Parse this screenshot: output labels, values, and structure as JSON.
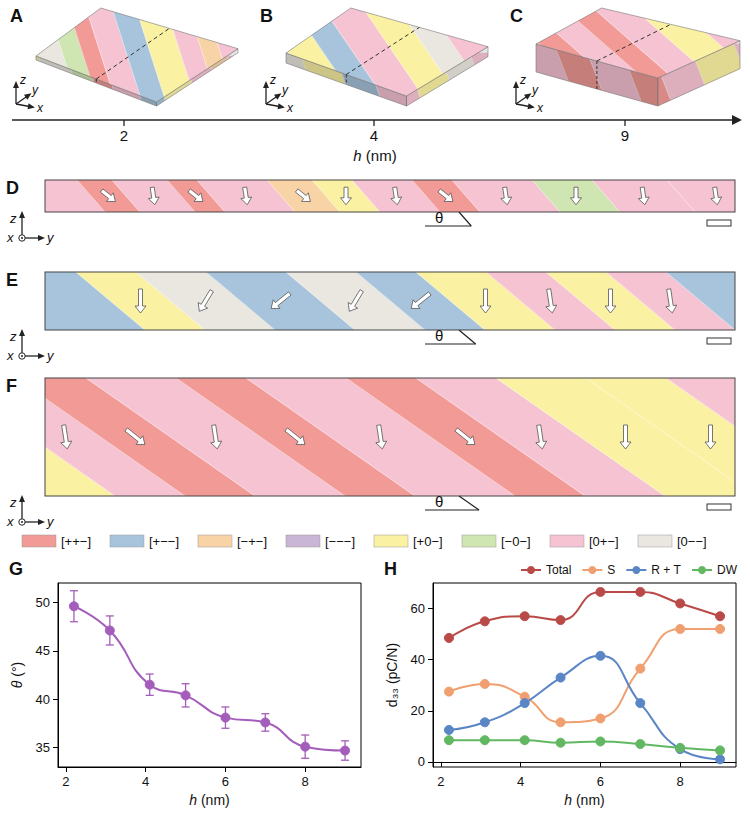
{
  "slab_panels": [
    {
      "letter": "A"
    },
    {
      "letter": "B"
    },
    {
      "letter": "C"
    }
  ],
  "axis_names": {
    "x": "x",
    "y": "y",
    "z": "z"
  },
  "thickness_axis": {
    "label": "h (nm)",
    "ticks": [
      2,
      4,
      9
    ]
  },
  "section_panels": [
    {
      "letter": "D",
      "angle_label": "θ"
    },
    {
      "letter": "E",
      "angle_label": "θ"
    },
    {
      "letter": "F",
      "angle_label": "θ"
    }
  ],
  "domain_legend": [
    {
      "label": "[++−]",
      "color": "#f29a96"
    },
    {
      "label": "[+−−]",
      "color": "#a8c4dc"
    },
    {
      "label": "[−+−]",
      "color": "#f8d3a5"
    },
    {
      "label": "[−−−]",
      "color": "#c9b5d5"
    },
    {
      "label": "[+0−]",
      "color": "#fbf1a3"
    },
    {
      "label": "[−0−]",
      "color": "#cfe6b2"
    },
    {
      "label": "[0+−]",
      "color": "#f6c3d3"
    },
    {
      "label": "[0−−]",
      "color": "#e9e7df"
    }
  ],
  "chart_data": [
    {
      "title": "G",
      "type": "line",
      "x": [
        2.2,
        3.1,
        4.1,
        5.0,
        6.0,
        7.0,
        8.0,
        9.0
      ],
      "xlabel": "h (nm)",
      "ylabel": "θ (°)",
      "xlim": [
        1.8,
        9.4
      ],
      "xticks": [
        2,
        4,
        6,
        8
      ],
      "ylim": [
        33,
        52
      ],
      "yticks": [
        35,
        40,
        45,
        50
      ],
      "grid": false,
      "marker": "circle",
      "series": [
        {
          "color": "#a45dbb",
          "values": [
            49.6,
            47.1,
            41.5,
            40.4,
            38.1,
            37.6,
            35.1,
            34.7
          ],
          "errors": [
            1.6,
            1.5,
            1.1,
            1.2,
            1.1,
            0.9,
            1.2,
            1.0
          ]
        }
      ]
    },
    {
      "title": "H",
      "type": "line",
      "x": [
        2.2,
        3.1,
        4.1,
        5.0,
        6.0,
        7.0,
        8.0,
        9.0
      ],
      "xlabel": "h (nm)",
      "ylabel": "d₃₃ (pC/N)",
      "xlim": [
        1.8,
        9.4
      ],
      "xticks": [
        2,
        4,
        6,
        8
      ],
      "ylim": [
        -2,
        70
      ],
      "yticks": [
        0,
        20,
        40,
        60
      ],
      "grid": false,
      "legend": "top right",
      "marker": "circle",
      "series": [
        {
          "name": "Total",
          "color": "#b94a48",
          "values": [
            48.5,
            55,
            57,
            55.5,
            66.5,
            66.5,
            62,
            57
          ]
        },
        {
          "name": "S",
          "color": "#f0a070",
          "values": [
            27.5,
            30.5,
            25.5,
            15.5,
            17,
            36.5,
            52,
            52
          ]
        },
        {
          "name": "R + T",
          "color": "#5b86c5",
          "values": [
            12.5,
            15.5,
            23,
            33,
            41.5,
            23,
            5,
            1
          ]
        },
        {
          "name": "DW",
          "color": "#62b862",
          "values": [
            8.5,
            8.5,
            8.5,
            7.5,
            8,
            7,
            5.5,
            4.5
          ]
        }
      ]
    }
  ]
}
